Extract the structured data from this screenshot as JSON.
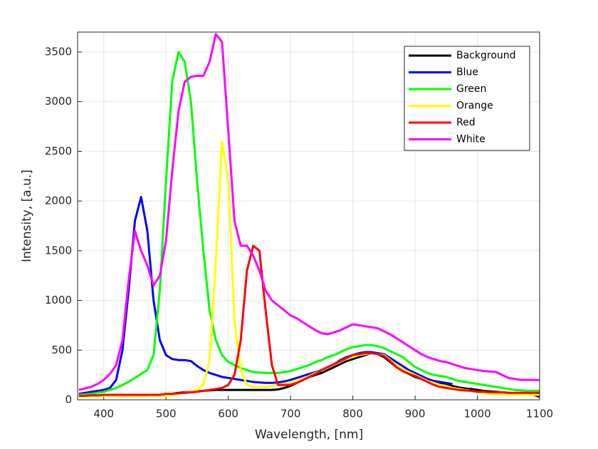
{
  "chart_data": {
    "type": "line",
    "xlabel": "Wavelength, [nm]",
    "ylabel": "Intensity, [a.u.]",
    "x": [
      360,
      370,
      380,
      390,
      400,
      410,
      420,
      430,
      440,
      450,
      460,
      470,
      480,
      490,
      500,
      510,
      520,
      530,
      540,
      550,
      560,
      570,
      580,
      590,
      600,
      610,
      620,
      630,
      640,
      650,
      660,
      670,
      680,
      690,
      700,
      710,
      720,
      730,
      740,
      750,
      760,
      770,
      780,
      790,
      800,
      810,
      820,
      830,
      840,
      850,
      860,
      870,
      880,
      890,
      900,
      910,
      920,
      930,
      940,
      950,
      960,
      970,
      980,
      990,
      1000,
      1010,
      1020,
      1030,
      1040,
      1050,
      1060,
      1070,
      1080,
      1090,
      1100
    ],
    "series": [
      {
        "name": "Background",
        "color": "#000000",
        "values": [
          50,
          45,
          40,
          40,
          40,
          40,
          40,
          40,
          40,
          40,
          40,
          40,
          45,
          50,
          55,
          60,
          70,
          75,
          80,
          85,
          90,
          95,
          100,
          100,
          100,
          100,
          100,
          100,
          100,
          100,
          100,
          100,
          105,
          120,
          140,
          170,
          200,
          230,
          250,
          270,
          300,
          330,
          360,
          390,
          410,
          430,
          450,
          470,
          460,
          430,
          380,
          330,
          290,
          260,
          230,
          210,
          190,
          170,
          160,
          150,
          140,
          125,
          115,
          110,
          100,
          90,
          85,
          80,
          75,
          70,
          65,
          60,
          55,
          50,
          30
        ]
      },
      {
        "name": "Blue",
        "color": "#0000ff",
        "values": [
          60,
          70,
          80,
          90,
          100,
          120,
          200,
          500,
          1100,
          1800,
          2040,
          1700,
          1000,
          600,
          450,
          410,
          400,
          400,
          390,
          340,
          300,
          270,
          250,
          230,
          220,
          210,
          200,
          190,
          180,
          175,
          170,
          170,
          175,
          185,
          200,
          220,
          240,
          260,
          280,
          300,
          330,
          360,
          400,
          430,
          450,
          470,
          480,
          480,
          470,
          460,
          420,
          380,
          340,
          300,
          270,
          240,
          210,
          190,
          180,
          170,
          160,
          null,
          null,
          null,
          null,
          null,
          null,
          null,
          null,
          null,
          null,
          null,
          null,
          null,
          null
        ]
      },
      {
        "name": "Green",
        "color": "#00ff00",
        "values": [
          50,
          55,
          60,
          70,
          80,
          100,
          120,
          150,
          180,
          220,
          260,
          300,
          450,
          1100,
          2200,
          3200,
          3500,
          3400,
          3000,
          2200,
          1500,
          900,
          600,
          450,
          380,
          350,
          320,
          300,
          280,
          275,
          270,
          270,
          270,
          280,
          290,
          310,
          330,
          350,
          380,
          400,
          430,
          450,
          480,
          510,
          530,
          540,
          550,
          550,
          540,
          520,
          490,
          460,
          430,
          380,
          330,
          300,
          270,
          250,
          240,
          230,
          210,
          190,
          180,
          170,
          160,
          150,
          140,
          130,
          120,
          110,
          100,
          95,
          90,
          90,
          90
        ]
      },
      {
        "name": "Orange",
        "color": "#ffff00",
        "values": [
          30,
          30,
          35,
          35,
          40,
          40,
          40,
          40,
          40,
          40,
          40,
          40,
          40,
          40,
          40,
          50,
          60,
          70,
          80,
          100,
          150,
          400,
          1400,
          2600,
          2200,
          800,
          300,
          150,
          130,
          130,
          130,
          140,
          150,
          160,
          170,
          190,
          210,
          240,
          270,
          300,
          330,
          360,
          390,
          410,
          430,
          450,
          460,
          470,
          460,
          450,
          400,
          350,
          310,
          280,
          250,
          220,
          190,
          170,
          150,
          140,
          120,
          110,
          100,
          90,
          80,
          60,
          60,
          55,
          55,
          55,
          50,
          50,
          50,
          50,
          50
        ]
      },
      {
        "name": "Red",
        "color": "#ff0000",
        "values": [
          40,
          40,
          45,
          45,
          50,
          50,
          50,
          50,
          50,
          50,
          50,
          50,
          50,
          50,
          60,
          60,
          65,
          70,
          75,
          80,
          90,
          100,
          110,
          120,
          150,
          250,
          600,
          1300,
          1550,
          1500,
          900,
          350,
          150,
          150,
          150,
          170,
          200,
          230,
          260,
          300,
          330,
          360,
          390,
          420,
          450,
          460,
          470,
          470,
          460,
          440,
          390,
          330,
          290,
          260,
          240,
          210,
          180,
          150,
          130,
          120,
          110,
          100,
          95,
          90,
          80,
          80,
          75,
          75,
          75,
          70,
          70,
          70,
          70,
          70,
          70
        ]
      },
      {
        "name": "White",
        "color": "#ff00ff",
        "values": [
          100,
          115,
          130,
          160,
          200,
          260,
          350,
          600,
          1200,
          1700,
          1500,
          1350,
          1150,
          1250,
          1600,
          2300,
          2900,
          3200,
          3250,
          3260,
          3260,
          3400,
          3680,
          3600,
          2700,
          1800,
          1550,
          1550,
          1450,
          1300,
          1100,
          1000,
          950,
          900,
          850,
          820,
          780,
          740,
          700,
          670,
          660,
          680,
          700,
          730,
          760,
          750,
          740,
          730,
          720,
          690,
          660,
          620,
          580,
          540,
          500,
          460,
          430,
          410,
          390,
          380,
          360,
          340,
          320,
          310,
          300,
          290,
          285,
          280,
          250,
          220,
          210,
          200,
          200,
          200,
          200
        ]
      }
    ],
    "xlim": [
      358,
      1100
    ],
    "ylim": [
      0,
      3700
    ],
    "xticks": [
      400,
      500,
      600,
      700,
      800,
      900,
      1000,
      1100
    ],
    "yticks": [
      0,
      500,
      1000,
      1500,
      2000,
      2500,
      3000,
      3500
    ],
    "grid": true,
    "legend": "northeast"
  }
}
